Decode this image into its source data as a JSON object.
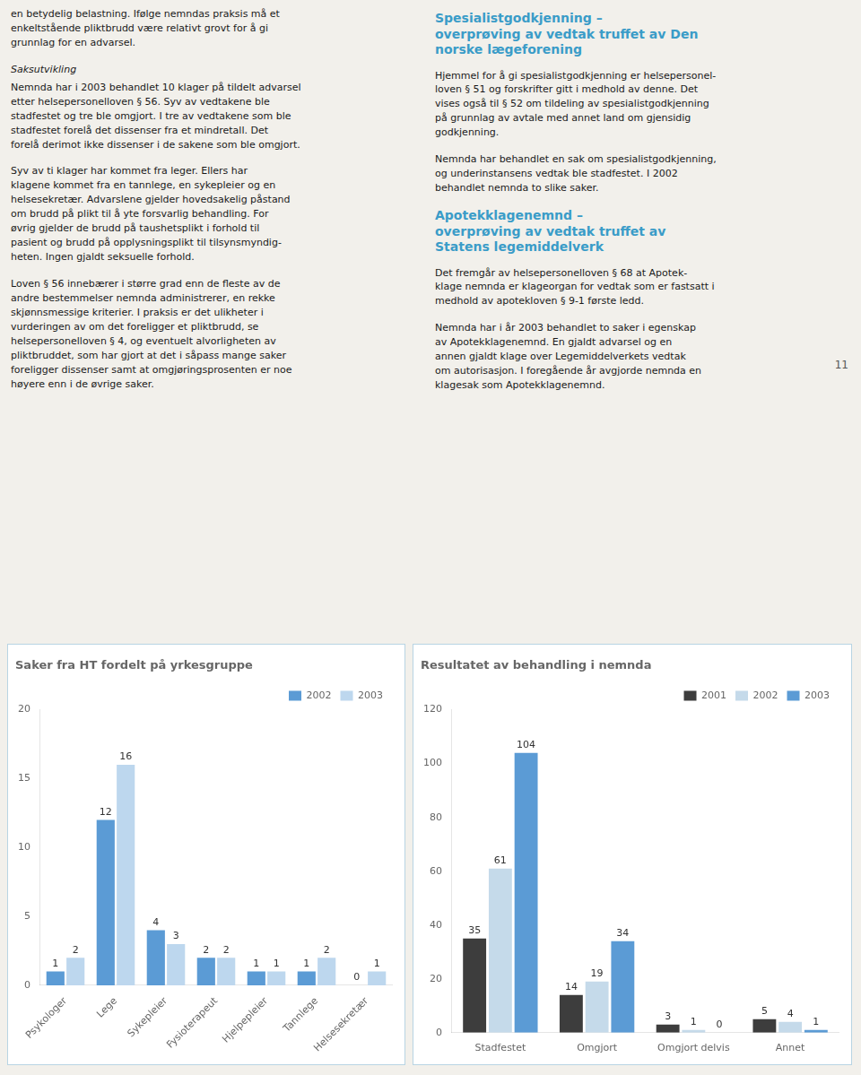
{
  "chart_data": [
    {
      "type": "bar",
      "title": "Saker fra HT fordelt på yrkesgruppe",
      "categories": [
        "Psykologer",
        "Lege",
        "Sykepleier",
        "Fysioterapeut",
        "Hjelpepleier",
        "Tannlege",
        "Helsesekretær"
      ],
      "series": [
        {
          "name": "2002",
          "color": "#5b9bd5",
          "values": [
            1,
            12,
            4,
            2,
            1,
            1,
            0
          ]
        },
        {
          "name": "2003",
          "color": "#bdd7ee",
          "values": [
            2,
            16,
            3,
            2,
            1,
            2,
            1
          ]
        }
      ],
      "ylim": [
        0,
        20
      ],
      "yticks": [
        0,
        5,
        10,
        15,
        20
      ],
      "grid": false,
      "legend": "upper right",
      "data_labels": true
    },
    {
      "type": "bar",
      "title": "Resultatet av behandling i nemnda",
      "categories": [
        "Stadfestet",
        "Omgjort",
        "Omgjort delvis",
        "Annet"
      ],
      "series": [
        {
          "name": "2001",
          "color": "#3d3d3d",
          "values": [
            35,
            14,
            3,
            5
          ]
        },
        {
          "name": "2002",
          "color": "#c5daea",
          "values": [
            61,
            19,
            1,
            4
          ]
        },
        {
          "name": "2003",
          "color": "#5b9bd5",
          "values": [
            104,
            34,
            0,
            1
          ]
        }
      ],
      "ylim": [
        0,
        120
      ],
      "yticks": [
        0,
        20,
        40,
        60,
        80,
        100,
        120
      ],
      "grid": false,
      "legend": "upper right",
      "data_labels": true
    }
  ],
  "page": {
    "left": [
      {
        "paragraph": "en betydelig belastning. Ifølge nemndas praksis må et\nenkeltstående pliktbrudd være relativt grovt for å gi\ngrunnlag for en advarsel."
      },
      {
        "subheading": "Saksutvikling"
      },
      {
        "paragraph": "Nemnda har i 2003 behandlet 10 klager på tildelt advarsel\netter helsepersonelloven § 56. Syv av vedtakene ble\nstadfestet og tre ble omgjort. I tre av vedtakene som ble\nstadfestet forelå det dissenser fra et mindretall. Det\nforelå derimot ikke dissenser i de sakene som ble omgjort."
      },
      {
        "paragraph": "Syv av ti klager har kommet fra leger. Ellers har\nklagene kommet fra en tannlege, en sykepleier og en\nhelsesekretær. Advarslene gjelder hovedsakelig påstand\nom brudd på plikt til å yte forsvarlig behandling. For\nøvrig gjelder de brudd på taushetsplikt i forhold til\npasient og brudd på opplysningsplikt til tilsynsmyndig-\nheten. Ingen gjaldt seksuelle forhold."
      },
      {
        "paragraph": "Loven § 56 innebærer i større grad enn de fleste av de\nandre bestemmelser nemnda administrerer, en rekke\nskjønnsmessige kriterier. I praksis er det ulikheter i\nvurderingen av om det foreligger et pliktbrudd, se\nhelsepersonelloven § 4, og eventuelt alvorligheten av\npliktbruddet, som har gjort at det i såpass mange saker\nforeligger dissenser samt at omgjøringsprosenten er noe\nhøyere enn i de øvrige saker."
      }
    ],
    "right": [
      {
        "heading": "Spesialistgodkjenning –\noverprøving av vedtak truffet av Den\nnorske lægeforening"
      },
      {
        "paragraph": "Hjemmel for å gi spesialistgodkjenning er helsepersonel-\nloven § 51 og forskrifter gitt i medhold av denne. Det\nvises også til § 52 om tildeling av spesialistgodkjenning\npå grunnlag av avtale med annet land om gjensidig\ngodkjenning."
      },
      {
        "paragraph": "Nemnda har behandlet en sak om spesialistgodkjenning,\nog underinstansens vedtak ble stadfestet. I 2002\nbehandlet nemnda to slike saker."
      },
      {
        "heading": "Apotekklagenemnd –\noverprøving av vedtak truffet av\nStatens legemiddelverk"
      },
      {
        "paragraph": "Det fremgår av helsepersonelloven § 68 at Apotek-\nklage nemnda er klageorgan for vedtak som er fastsatt i\nmedhold av apotekloven § 9-1 første ledd."
      },
      {
        "paragraph": "Nemnda har i år 2003 behandlet to saker i egenskap\nav Apotekklagenemnd. En gjaldt advarsel og en\nannen gjaldt klage over Legemiddelverkets vedtak\nom autorisasjon. I foregående år avgjorde nemnda en\nklagesak som Apotekklagenemnd."
      }
    ],
    "page_number": "11"
  }
}
